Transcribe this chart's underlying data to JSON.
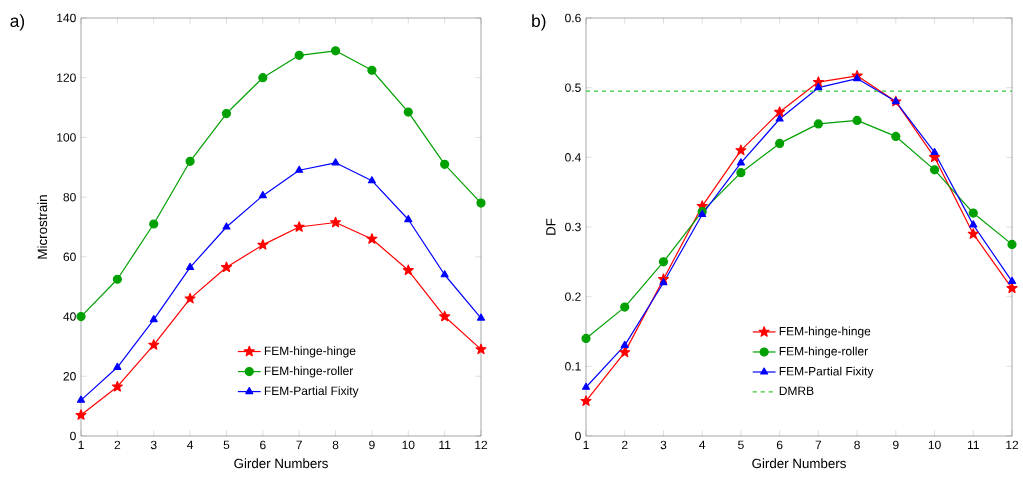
{
  "chart_data": [
    {
      "type": "line",
      "xlabel": "Girder Numbers",
      "ylabel": "Microstrain",
      "annotations": [
        "a)"
      ],
      "x": [
        1,
        2,
        3,
        4,
        5,
        6,
        7,
        8,
        9,
        10,
        11,
        12
      ],
      "xlim": [
        1,
        12
      ],
      "xticks": [
        1,
        2,
        3,
        4,
        5,
        6,
        7,
        8,
        9,
        10,
        11,
        12
      ],
      "ylim": [
        0,
        140
      ],
      "yticks": [
        0,
        20,
        40,
        60,
        80,
        100,
        120,
        140
      ],
      "grid": false,
      "legend": "bottom",
      "line_style": "solid",
      "series": [
        {
          "name": "FEM-hinge-hinge",
          "color": "#ff0000",
          "marker": "star",
          "values": [
            7,
            16.5,
            30.5,
            46,
            56.5,
            64,
            70,
            71.5,
            66,
            55.5,
            40,
            29
          ]
        },
        {
          "name": "FEM-hinge-roller",
          "color": "#00a000",
          "marker": "circle",
          "values": [
            40,
            52.5,
            71,
            92,
            108,
            120,
            127.5,
            129,
            122.5,
            108.5,
            91,
            78
          ]
        },
        {
          "name": "FEM-Partial Fixity",
          "color": "#0000ff",
          "marker": "triangle",
          "values": [
            12,
            23,
            39,
            56.5,
            70,
            80.5,
            89,
            91.5,
            85.5,
            72.5,
            54,
            39.5
          ]
        }
      ]
    },
    {
      "type": "line",
      "xlabel": "Girder Numbers",
      "ylabel": "DF",
      "annotations": [
        "b)"
      ],
      "x": [
        1,
        2,
        3,
        4,
        5,
        6,
        7,
        8,
        9,
        10,
        11,
        12
      ],
      "xlim": [
        1,
        12
      ],
      "xticks": [
        1,
        2,
        3,
        4,
        5,
        6,
        7,
        8,
        9,
        10,
        11,
        12
      ],
      "ylim": [
        0,
        0.6
      ],
      "yticks": [
        0,
        0.1,
        0.2,
        0.3,
        0.4,
        0.5,
        0.6
      ],
      "grid": false,
      "legend": "bottom",
      "line_style": "solid",
      "series": [
        {
          "name": "FEM-hinge-hinge",
          "color": "#ff0000",
          "marker": "star",
          "values": [
            0.05,
            0.12,
            0.225,
            0.33,
            0.41,
            0.465,
            0.508,
            0.517,
            0.48,
            0.4,
            0.29,
            0.212
          ]
        },
        {
          "name": "FEM-hinge-roller",
          "color": "#00a000",
          "marker": "circle",
          "values": [
            0.14,
            0.185,
            0.25,
            0.322,
            0.378,
            0.42,
            0.448,
            0.453,
            0.43,
            0.382,
            0.32,
            0.275
          ]
        },
        {
          "name": "FEM-Partial Fixity",
          "color": "#0000ff",
          "marker": "triangle",
          "values": [
            0.07,
            0.13,
            0.22,
            0.318,
            0.392,
            0.455,
            0.5,
            0.513,
            0.48,
            0.407,
            0.303,
            0.222
          ]
        }
      ],
      "ref_lines": [
        {
          "axis": "y",
          "value": 0.495,
          "label": "DMRB",
          "color": "#33cc33",
          "line_style": "dashed"
        }
      ]
    }
  ]
}
